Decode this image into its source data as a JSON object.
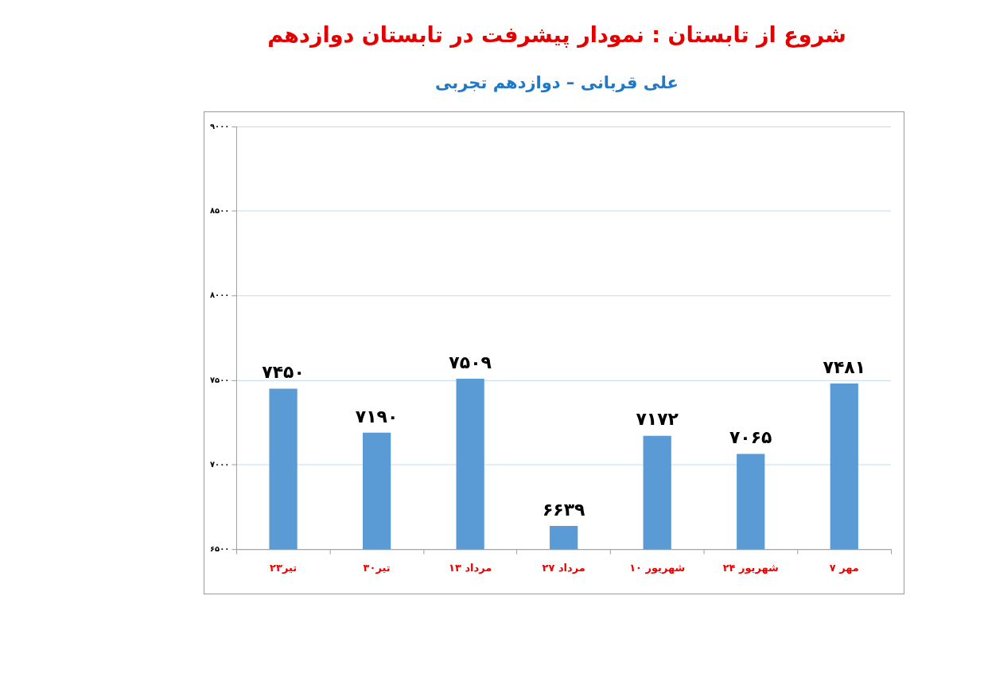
{
  "chart_data": {
    "type": "bar",
    "title": "شروع از تابستان : نمودار پیشرفت در تابستان دوازدهم",
    "subtitle": "علی قربانی – دوازدهم تجربی",
    "categories": [
      "۲۳تیر",
      "۳۰تیر",
      "۱۳ مرداد",
      "۲۷ مرداد",
      "۱۰ شهریور",
      "۲۴ شهریور",
      "۷ مهر"
    ],
    "values": [
      7450,
      7190,
      7509,
      6639,
      7172,
      7065,
      7481
    ],
    "value_labels": [
      "۷۴۵۰",
      "۷۱۹۰",
      "۷۵۰۹",
      "۶۶۳۹",
      "۷۱۷۲",
      "۷۰۶۵",
      "۷۴۸۱"
    ],
    "color": "#5b9bd5",
    "ylim": [
      6500,
      9000
    ],
    "yticks": [
      {
        "value": 6500,
        "label": "۶۵۰۰"
      },
      {
        "value": 7000,
        "label": "۷۰۰۰"
      },
      {
        "value": 7500,
        "label": "۷۵۰۰"
      },
      {
        "value": 8000,
        "label": "۸۰۰۰"
      },
      {
        "value": 8500,
        "label": "۸۵۰۰"
      },
      {
        "value": 9000,
        "label": "۹۰۰۰"
      }
    ],
    "grid": "y",
    "legend": false
  }
}
